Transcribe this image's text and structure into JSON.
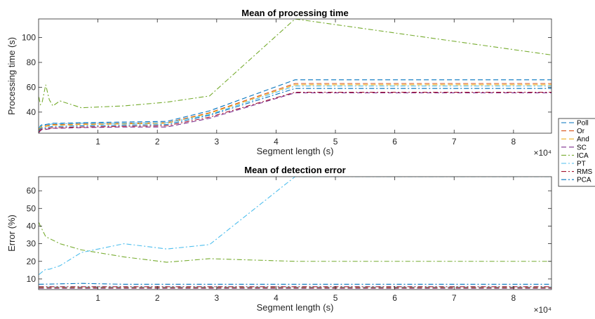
{
  "chart_data": [
    {
      "type": "line",
      "title": "Mean of processing time",
      "xlabel": "Segment length (s)",
      "ylabel": "Processing time (s)",
      "x_multiplier_label": "×10⁴",
      "x_scale": 10000,
      "xlim": [
        0,
        86400
      ],
      "ylim": [
        23,
        115
      ],
      "xticks": [
        10000,
        20000,
        30000,
        40000,
        50000,
        60000,
        70000,
        80000
      ],
      "xtick_labels": [
        "1",
        "2",
        "3",
        "4",
        "5",
        "6",
        "7",
        "8"
      ],
      "yticks": [
        40,
        60,
        80,
        100
      ],
      "ytick_labels": [
        "40",
        "60",
        "80",
        "100"
      ],
      "grid": false,
      "x": [
        60,
        300,
        600,
        1200,
        1800,
        2400,
        3600,
        7200,
        14400,
        21600,
        28800,
        43200,
        86400
      ],
      "series": [
        {
          "name": "Poll",
          "color": "#0072BD",
          "dash": "7,4",
          "values": [
            27,
            29,
            30,
            30,
            30.5,
            31,
            31,
            31.5,
            32,
            32.5,
            41,
            66,
            66
          ]
        },
        {
          "name": "Or",
          "color": "#D95319",
          "dash": "7,4",
          "values": [
            26,
            28,
            29,
            29,
            29.5,
            30,
            30,
            30.5,
            31,
            31.5,
            39.5,
            63,
            63
          ]
        },
        {
          "name": "And",
          "color": "#EDB120",
          "dash": "7,4",
          "values": [
            25.5,
            27.5,
            28.5,
            28.5,
            29,
            29.5,
            29.5,
            30,
            30.5,
            31,
            39,
            62,
            62
          ]
        },
        {
          "name": "SC",
          "color": "#7E2F8E",
          "dash": "7,4",
          "values": [
            23.5,
            25,
            26,
            26,
            26.5,
            27,
            27,
            27.5,
            28,
            28,
            35,
            55.5,
            55.5
          ]
        },
        {
          "name": "ICA",
          "color": "#77AC30",
          "dash": "7,3,2,3",
          "values": [
            52,
            46,
            48,
            62,
            50,
            45,
            49,
            43.5,
            45,
            48,
            53,
            115,
            86
          ]
        },
        {
          "name": "PT",
          "color": "#4DBEEE",
          "dash": "7,3,2,3",
          "values": [
            27,
            28.5,
            29.5,
            29.5,
            30,
            30.5,
            30.5,
            31,
            31,
            31.5,
            38,
            61,
            61
          ]
        },
        {
          "name": "RMS",
          "color": "#A2142F",
          "dash": "7,3,2,3",
          "values": [
            24,
            25.5,
            26.5,
            26.5,
            27,
            27.5,
            27.5,
            28,
            28.5,
            29,
            36,
            56,
            56
          ]
        },
        {
          "name": "PCA",
          "color": "#0072BD",
          "dash": "7,3,2,3",
          "values": [
            25,
            26.5,
            27.5,
            27.5,
            28,
            28.5,
            28.5,
            29,
            29.5,
            30,
            37.5,
            59,
            59
          ]
        }
      ]
    },
    {
      "type": "line",
      "title": "Mean of detection error",
      "xlabel": "Segment length (s)",
      "ylabel": "Error (%)",
      "x_multiplier_label": "×10⁴",
      "x_scale": 10000,
      "xlim": [
        0,
        86400
      ],
      "ylim": [
        4,
        68
      ],
      "xticks": [
        10000,
        20000,
        30000,
        40000,
        50000,
        60000,
        70000,
        80000
      ],
      "xtick_labels": [
        "1",
        "2",
        "3",
        "4",
        "5",
        "6",
        "7",
        "8"
      ],
      "yticks": [
        10,
        20,
        30,
        40,
        50,
        60
      ],
      "ytick_labels": [
        "10",
        "20",
        "30",
        "40",
        "50",
        "60"
      ],
      "grid": false,
      "series": [
        {
          "name": "Poll",
          "color": "#0072BD",
          "dash": "7,4",
          "x": [
            60,
            86400
          ],
          "values": [
            5.3,
            5.3
          ]
        },
        {
          "name": "Or",
          "color": "#D95319",
          "dash": "7,4",
          "x": [
            60,
            86400
          ],
          "values": [
            5.0,
            5.0
          ]
        },
        {
          "name": "And",
          "color": "#EDB120",
          "dash": "7,4",
          "x": [
            60,
            86400
          ],
          "values": [
            4.9,
            4.9
          ]
        },
        {
          "name": "SC",
          "color": "#7E2F8E",
          "dash": "7,4",
          "x": [
            60,
            86400
          ],
          "values": [
            4.7,
            4.7
          ]
        },
        {
          "name": "ICA",
          "color": "#77AC30",
          "dash": "7,3,2,3",
          "x": [
            60,
            300,
            600,
            1200,
            1800,
            3600,
            7200,
            14400,
            21600,
            28800,
            43200,
            86400
          ],
          "values": [
            42,
            40,
            38,
            34,
            33,
            30,
            26.5,
            22.5,
            19.5,
            21.5,
            20,
            20
          ]
        },
        {
          "name": "PT",
          "color": "#4DBEEE",
          "dash": "7,3,2,3",
          "x": [
            60,
            600,
            1200,
            1800,
            3600,
            7200,
            14400,
            21600,
            28800,
            43200,
            86400
          ],
          "values": [
            12.5,
            14,
            15.5,
            15.5,
            17.5,
            25,
            30,
            27,
            29.5,
            68,
            68
          ]
        },
        {
          "name": "RMS",
          "color": "#A2142F",
          "dash": "7,3,2,3",
          "x": [
            60,
            86400
          ],
          "values": [
            5.6,
            5.6
          ]
        },
        {
          "name": "PCA",
          "color": "#0072BD",
          "dash": "7,3,2,3",
          "x": [
            60,
            7200,
            14400,
            86400
          ],
          "values": [
            7,
            7.5,
            7,
            7
          ]
        }
      ]
    }
  ],
  "legend": {
    "placement": "right",
    "items": [
      {
        "label": "Poll",
        "color": "#0072BD",
        "dash": "7,4"
      },
      {
        "label": "Or",
        "color": "#D95319",
        "dash": "7,4"
      },
      {
        "label": "And",
        "color": "#EDB120",
        "dash": "7,4"
      },
      {
        "label": "SC",
        "color": "#7E2F8E",
        "dash": "7,4"
      },
      {
        "label": "ICA",
        "color": "#77AC30",
        "dash": "7,3,2,3"
      },
      {
        "label": "PT",
        "color": "#4DBEEE",
        "dash": "7,3,2,3"
      },
      {
        "label": "RMS",
        "color": "#A2142F",
        "dash": "7,3,2,3"
      },
      {
        "label": "PCA",
        "color": "#0072BD",
        "dash": "7,3,2,3"
      }
    ]
  }
}
